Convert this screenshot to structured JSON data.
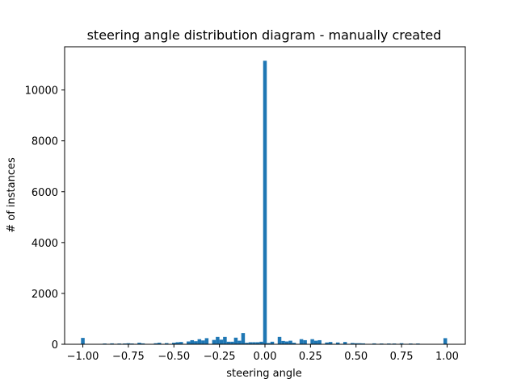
{
  "chart_data": {
    "type": "bar",
    "title": "steering angle distribution diagram - manually created",
    "xlabel": "steering angle",
    "ylabel": "# of instances",
    "xlim": [
      -1.1,
      1.1
    ],
    "ylim": [
      0,
      11700
    ],
    "xticks": [
      -1.0,
      -0.75,
      -0.5,
      -0.25,
      0.0,
      0.25,
      0.5,
      0.75,
      1.0
    ],
    "xtick_labels": [
      "−1.00",
      "−0.75",
      "−0.50",
      "−0.25",
      "0.00",
      "0.25",
      "0.50",
      "0.75",
      "1.00"
    ],
    "yticks": [
      0,
      2000,
      4000,
      6000,
      8000,
      10000
    ],
    "ytick_labels": [
      "0",
      "2000",
      "4000",
      "6000",
      "8000",
      "10000"
    ],
    "grid": false,
    "legend": "none",
    "bar_color": "#1f77b4",
    "bin_width": 0.02,
    "bins": [
      {
        "x": -1.0,
        "value": 250
      },
      {
        "x": -0.88,
        "value": 30
      },
      {
        "x": -0.84,
        "value": 35
      },
      {
        "x": -0.8,
        "value": 30
      },
      {
        "x": -0.77,
        "value": 30
      },
      {
        "x": -0.75,
        "value": 40
      },
      {
        "x": -0.73,
        "value": 30
      },
      {
        "x": -0.69,
        "value": 60
      },
      {
        "x": -0.67,
        "value": 35
      },
      {
        "x": -0.6,
        "value": 40
      },
      {
        "x": -0.58,
        "value": 60
      },
      {
        "x": -0.54,
        "value": 45
      },
      {
        "x": -0.5,
        "value": 60
      },
      {
        "x": -0.48,
        "value": 80
      },
      {
        "x": -0.46,
        "value": 90
      },
      {
        "x": -0.42,
        "value": 110
      },
      {
        "x": -0.4,
        "value": 160
      },
      {
        "x": -0.38,
        "value": 120
      },
      {
        "x": -0.36,
        "value": 200
      },
      {
        "x": -0.34,
        "value": 150
      },
      {
        "x": -0.32,
        "value": 240
      },
      {
        "x": -0.28,
        "value": 170
      },
      {
        "x": -0.26,
        "value": 290
      },
      {
        "x": -0.24,
        "value": 180
      },
      {
        "x": -0.22,
        "value": 290
      },
      {
        "x": -0.2,
        "value": 100
      },
      {
        "x": -0.18,
        "value": 100
      },
      {
        "x": -0.16,
        "value": 260
      },
      {
        "x": -0.14,
        "value": 140
      },
      {
        "x": -0.12,
        "value": 440
      },
      {
        "x": -0.1,
        "value": 60
      },
      {
        "x": -0.08,
        "value": 80
      },
      {
        "x": -0.06,
        "value": 80
      },
      {
        "x": -0.04,
        "value": 80
      },
      {
        "x": -0.02,
        "value": 100
      },
      {
        "x": 0.0,
        "value": 11150
      },
      {
        "x": 0.02,
        "value": 50
      },
      {
        "x": 0.04,
        "value": 100
      },
      {
        "x": 0.08,
        "value": 290
      },
      {
        "x": 0.1,
        "value": 130
      },
      {
        "x": 0.12,
        "value": 110
      },
      {
        "x": 0.14,
        "value": 140
      },
      {
        "x": 0.16,
        "value": 60
      },
      {
        "x": 0.2,
        "value": 200
      },
      {
        "x": 0.22,
        "value": 160
      },
      {
        "x": 0.26,
        "value": 200
      },
      {
        "x": 0.28,
        "value": 140
      },
      {
        "x": 0.3,
        "value": 160
      },
      {
        "x": 0.34,
        "value": 70
      },
      {
        "x": 0.36,
        "value": 90
      },
      {
        "x": 0.4,
        "value": 70
      },
      {
        "x": 0.44,
        "value": 90
      },
      {
        "x": 0.48,
        "value": 50
      },
      {
        "x": 0.5,
        "value": 40
      },
      {
        "x": 0.52,
        "value": 40
      },
      {
        "x": 0.54,
        "value": 35
      },
      {
        "x": 0.6,
        "value": 35
      },
      {
        "x": 0.64,
        "value": 30
      },
      {
        "x": 0.68,
        "value": 30
      },
      {
        "x": 0.71,
        "value": 30
      },
      {
        "x": 0.75,
        "value": 40
      },
      {
        "x": 0.8,
        "value": 30
      },
      {
        "x": 0.84,
        "value": 30
      },
      {
        "x": 0.99,
        "value": 240
      }
    ]
  }
}
